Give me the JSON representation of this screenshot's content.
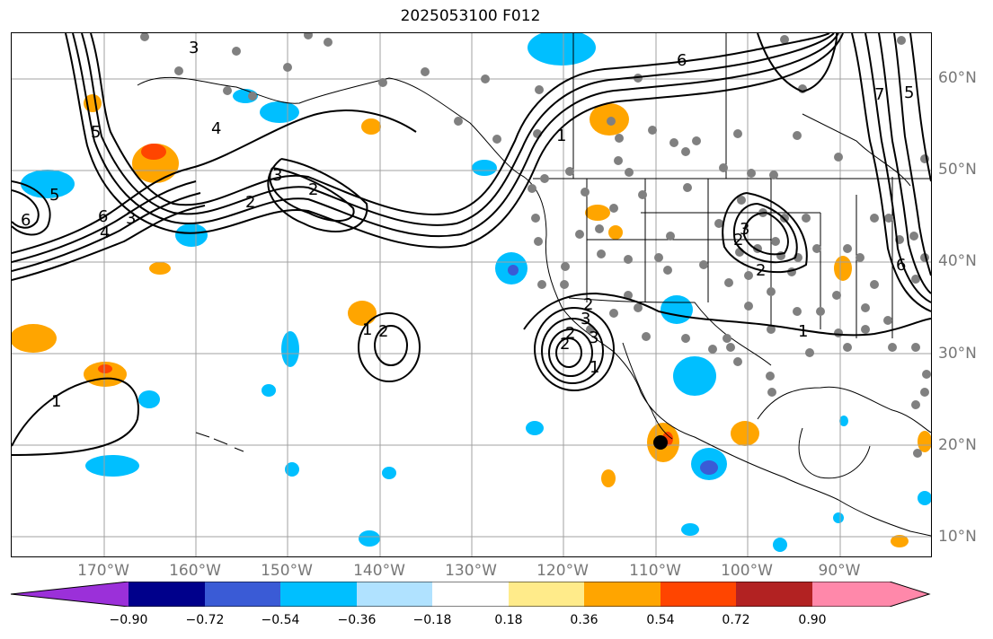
{
  "title": "2025053100 F012",
  "lat_labels": [
    "60°N",
    "50°N",
    "40°N",
    "30°N",
    "20°N",
    "10°N"
  ],
  "lon_labels": [
    "170°W",
    "160°W",
    "150°W",
    "140°W",
    "130°W",
    "120°W",
    "110°W",
    "100°W",
    "90°W"
  ],
  "colorbar": {
    "ticks": [
      "−0.90",
      "−0.72",
      "−0.54",
      "−0.36",
      "−0.18",
      "0.18",
      "0.36",
      "0.54",
      "0.72",
      "0.90"
    ],
    "colors": [
      "#9b30d9",
      "#00008b",
      "#3a5bd6",
      "#00bfff",
      "#b0e2ff",
      "#ffffff",
      "#ffeb8a",
      "#ffa500",
      "#ff4500",
      "#b22222",
      "#ff88aa"
    ]
  },
  "contour_labels": [
    "3",
    "4",
    "5",
    "6",
    "4",
    "6",
    "3",
    "2",
    "3",
    "2",
    "6",
    "5",
    "1",
    "2",
    "3",
    "2",
    "1",
    "2",
    "1",
    "2",
    "3",
    "2",
    "1",
    "3",
    "2",
    "1",
    "7",
    "6",
    "5"
  ],
  "colors": {
    "contour": "#000000",
    "grid": "#a0a0a0",
    "station": "#808080",
    "coast": "#000000"
  }
}
